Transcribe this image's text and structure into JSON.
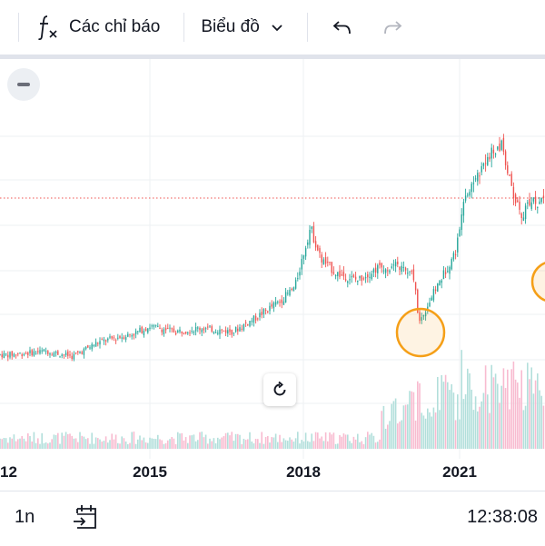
{
  "toolbar": {
    "indicators_label": "Các chỉ báo",
    "chart_type_label": "Biểu đồ",
    "undo_icon": "undo-icon",
    "redo_icon": "redo-icon",
    "fx_icon": "function-icon"
  },
  "chart": {
    "type": "candlestick",
    "x_axis_labels": [
      "12",
      "2015",
      "2018",
      "2021"
    ],
    "colors": {
      "up": "#26a69a",
      "down": "#ef5350",
      "volume_up": "#b2dfdb",
      "volume_down": "#f8bbd0",
      "price_line": "#ef5350",
      "marker": "#f59f17",
      "grid": "#eef0f3"
    },
    "markers": 2
  },
  "chart_data": {
    "type": "candlestick",
    "x_tick_labels": [
      "12",
      "2015",
      "2018",
      "2021"
    ],
    "price_trend": [
      {
        "date": "2012.3",
        "close": 28
      },
      {
        "date": "2013.0",
        "close": 30
      },
      {
        "date": "2013.5",
        "close": 27
      },
      {
        "date": "2014.0",
        "close": 35
      },
      {
        "date": "2014.7",
        "close": 40
      },
      {
        "date": "2015.0",
        "close": 44
      },
      {
        "date": "2015.5",
        "close": 41
      },
      {
        "date": "2016.0",
        "close": 43
      },
      {
        "date": "2016.6",
        "close": 41
      },
      {
        "date": "2017.0",
        "close": 48
      },
      {
        "date": "2017.5",
        "close": 58
      },
      {
        "date": "2017.8",
        "close": 66
      },
      {
        "date": "2018.1",
        "close": 100
      },
      {
        "date": "2018.3",
        "close": 82
      },
      {
        "date": "2018.6",
        "close": 74
      },
      {
        "date": "2019.0",
        "close": 70
      },
      {
        "date": "2019.4",
        "close": 77
      },
      {
        "date": "2019.8",
        "close": 78
      },
      {
        "date": "2020.1",
        "close": 72
      },
      {
        "date": "2020.2",
        "close": 46
      },
      {
        "date": "2020.5",
        "close": 64
      },
      {
        "date": "2020.9",
        "close": 86
      },
      {
        "date": "2021.1",
        "close": 118
      },
      {
        "date": "2021.5",
        "close": 138
      },
      {
        "date": "2021.8",
        "close": 148
      },
      {
        "date": "2022.0",
        "close": 118
      },
      {
        "date": "2022.2",
        "close": 106
      },
      {
        "date": "2022.3",
        "close": 114
      }
    ],
    "reference_line": "dotted horizontal price line",
    "grid": true
  },
  "chart_controls": {
    "collapse_icon": "minus-icon",
    "reset_icon": "reset-icon"
  },
  "bottom": {
    "interval": "1n",
    "goto_icon": "calendar-goto-icon",
    "time": "12:38:08"
  }
}
